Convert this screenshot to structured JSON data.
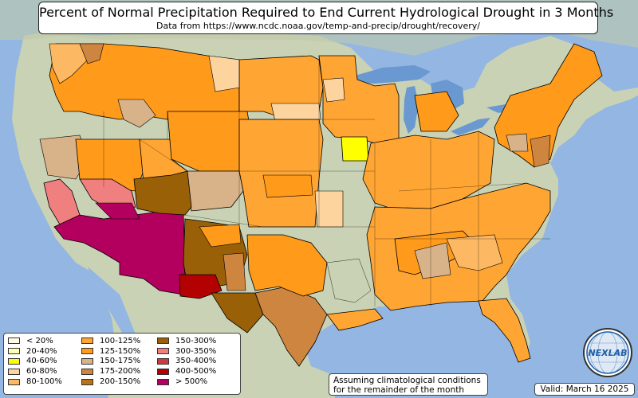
{
  "title": "Percent of Normal Precipitation Required to End Current Hydrological Drought in 3 Months",
  "subtitle": "Data from https://www.ncdc.noaa.gov/temp-and-precip/drought/recovery/",
  "legend": [
    {
      "label": "< 20%",
      "color": "#ffffe6"
    },
    {
      "label": "20-40%",
      "color": "#ffffb3"
    },
    {
      "label": "40-60%",
      "color": "#ffff00"
    },
    {
      "label": "60-80%",
      "color": "#fdd49e"
    },
    {
      "label": "80-100%",
      "color": "#fdb863"
    },
    {
      "label": "100-125%",
      "color": "#ffa533"
    },
    {
      "label": "125-150%",
      "color": "#ff9a1a"
    },
    {
      "label": "150-175%",
      "color": "#d8b38a"
    },
    {
      "label": "175-200%",
      "color": "#cd853f"
    },
    {
      "label": "200-150%",
      "color": "#b8741a"
    },
    {
      "label": "150-300%",
      "color": "#996008"
    },
    {
      "label": "300-350%",
      "color": "#f08080"
    },
    {
      "label": "350-400%",
      "color": "#d03a3a"
    },
    {
      "label": "400-500%",
      "color": "#b30000"
    },
    {
      "label": "> 500%",
      "color": "#b3005e"
    }
  ],
  "note": {
    "line1": "Assuming climatological conditions",
    "line2": "for the remainder of the month"
  },
  "valid": "Valid: March 16 2025",
  "logo_text": "NEXLAB",
  "colors": {
    "ocean": "#93b6e2",
    "land": "#c9d2b4",
    "great_lakes": "#6a98d0"
  }
}
